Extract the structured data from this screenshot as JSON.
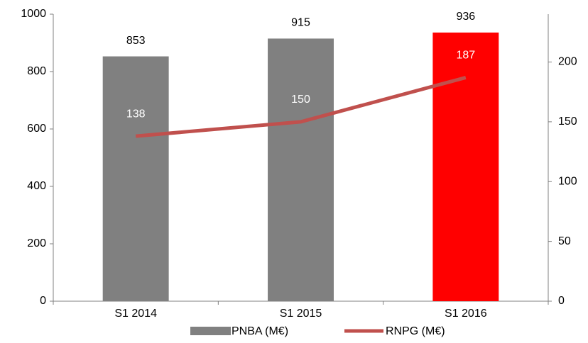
{
  "chart_data": {
    "type": "bar-line",
    "categories": [
      "S1 2014",
      "S1 2015",
      "S1 2016"
    ],
    "series": [
      {
        "name": "PNBA (M€)",
        "type": "bar",
        "color": "#808080",
        "point_colors": [
          "#808080",
          "#808080",
          "#ff0000"
        ],
        "values": [
          853,
          915,
          936
        ]
      },
      {
        "name": "RNPG (M€)",
        "type": "line",
        "axis": "y2",
        "color": "#c0504d",
        "values": [
          138,
          150,
          187
        ]
      }
    ],
    "ylim": [
      0,
      1000
    ],
    "yticks": [
      0,
      200,
      400,
      600,
      800,
      1000
    ],
    "y2lim": [
      0,
      240
    ],
    "y2ticks": [
      0,
      50,
      100,
      150,
      200
    ],
    "legend": "bottom"
  }
}
